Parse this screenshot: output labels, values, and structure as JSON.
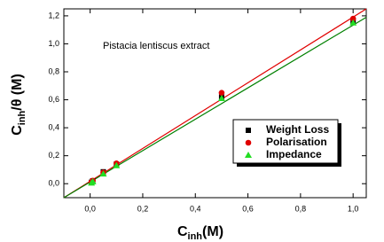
{
  "chart_data": {
    "type": "scatter",
    "annotation": "Pistacia lentiscus extract",
    "xlabel": {
      "main": "C",
      "sub": "inh",
      "rest": "(M)"
    },
    "ylabel": {
      "main": "C",
      "sub": "inh",
      "rest": "/θ (M)"
    },
    "xlim": [
      -0.1,
      1.05
    ],
    "ylim": [
      -0.1,
      1.25
    ],
    "xticks": [
      {
        "value": 0,
        "label": "0,0"
      },
      {
        "value": 0.2,
        "label": "0,2"
      },
      {
        "value": 0.4,
        "label": "0,4"
      },
      {
        "value": 0.6,
        "label": "0,6"
      },
      {
        "value": 0.8,
        "label": "0,8"
      },
      {
        "value": 1,
        "label": "1,0"
      }
    ],
    "yticks": [
      {
        "value": 0,
        "label": "0,0"
      },
      {
        "value": 0.2,
        "label": "0,2"
      },
      {
        "value": 0.4,
        "label": "0,4"
      },
      {
        "value": 0.6,
        "label": "0,6"
      },
      {
        "value": 0.8,
        "label": "0,8"
      },
      {
        "value": 1,
        "label": "1,0"
      },
      {
        "value": 1.2,
        "label": "1,2"
      }
    ],
    "series": [
      {
        "name": "Weight Loss",
        "color": "#000000",
        "marker": "square",
        "x": [
          0.005,
          0.01,
          0.05,
          0.1,
          0.5,
          1.0
        ],
        "values": [
          0.01,
          0.02,
          0.085,
          0.14,
          0.62,
          1.16
        ]
      },
      {
        "name": "Polarisation",
        "color": "#e00000",
        "marker": "circle",
        "x": [
          0.005,
          0.01,
          0.05,
          0.1,
          0.5,
          1.0
        ],
        "values": [
          0.012,
          0.022,
          0.08,
          0.145,
          0.65,
          1.18
        ]
      },
      {
        "name": "Impedance",
        "color": "#22dd22",
        "marker": "triangle",
        "x": [
          0.005,
          0.01,
          0.05,
          0.1,
          0.5,
          1.0
        ],
        "values": [
          0.005,
          0.015,
          0.07,
          0.13,
          0.61,
          1.15
        ]
      }
    ],
    "fits": [
      {
        "color": "#e00000",
        "x": [
          -0.1,
          1.05
        ],
        "values": [
          -0.1,
          1.25
        ]
      },
      {
        "color": "#008000",
        "x": [
          -0.1,
          1.05
        ],
        "values": [
          -0.1,
          1.19
        ]
      }
    ]
  }
}
